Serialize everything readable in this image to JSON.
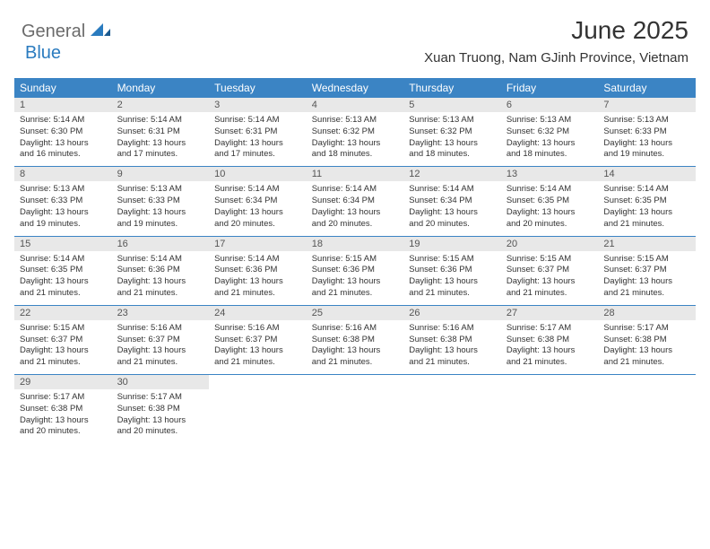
{
  "logo": {
    "text1": "General",
    "text2": "Blue"
  },
  "title": "June 2025",
  "location": "Xuan Truong, Nam GJinh Province, Vietnam",
  "dayNames": [
    "Sunday",
    "Monday",
    "Tuesday",
    "Wednesday",
    "Thursday",
    "Friday",
    "Saturday"
  ],
  "colors": {
    "headerBg": "#3b84c4",
    "headerText": "#ffffff",
    "daynumBg": "#e8e8e8",
    "weekBorder": "#3b84c4",
    "logoGray": "#6b6b6b",
    "logoBlue": "#2a7bbf"
  },
  "weeks": [
    [
      {
        "n": "1",
        "sunrise": "Sunrise: 5:14 AM",
        "sunset": "Sunset: 6:30 PM",
        "d1": "Daylight: 13 hours",
        "d2": "and 16 minutes."
      },
      {
        "n": "2",
        "sunrise": "Sunrise: 5:14 AM",
        "sunset": "Sunset: 6:31 PM",
        "d1": "Daylight: 13 hours",
        "d2": "and 17 minutes."
      },
      {
        "n": "3",
        "sunrise": "Sunrise: 5:14 AM",
        "sunset": "Sunset: 6:31 PM",
        "d1": "Daylight: 13 hours",
        "d2": "and 17 minutes."
      },
      {
        "n": "4",
        "sunrise": "Sunrise: 5:13 AM",
        "sunset": "Sunset: 6:32 PM",
        "d1": "Daylight: 13 hours",
        "d2": "and 18 minutes."
      },
      {
        "n": "5",
        "sunrise": "Sunrise: 5:13 AM",
        "sunset": "Sunset: 6:32 PM",
        "d1": "Daylight: 13 hours",
        "d2": "and 18 minutes."
      },
      {
        "n": "6",
        "sunrise": "Sunrise: 5:13 AM",
        "sunset": "Sunset: 6:32 PM",
        "d1": "Daylight: 13 hours",
        "d2": "and 18 minutes."
      },
      {
        "n": "7",
        "sunrise": "Sunrise: 5:13 AM",
        "sunset": "Sunset: 6:33 PM",
        "d1": "Daylight: 13 hours",
        "d2": "and 19 minutes."
      }
    ],
    [
      {
        "n": "8",
        "sunrise": "Sunrise: 5:13 AM",
        "sunset": "Sunset: 6:33 PM",
        "d1": "Daylight: 13 hours",
        "d2": "and 19 minutes."
      },
      {
        "n": "9",
        "sunrise": "Sunrise: 5:13 AM",
        "sunset": "Sunset: 6:33 PM",
        "d1": "Daylight: 13 hours",
        "d2": "and 19 minutes."
      },
      {
        "n": "10",
        "sunrise": "Sunrise: 5:14 AM",
        "sunset": "Sunset: 6:34 PM",
        "d1": "Daylight: 13 hours",
        "d2": "and 20 minutes."
      },
      {
        "n": "11",
        "sunrise": "Sunrise: 5:14 AM",
        "sunset": "Sunset: 6:34 PM",
        "d1": "Daylight: 13 hours",
        "d2": "and 20 minutes."
      },
      {
        "n": "12",
        "sunrise": "Sunrise: 5:14 AM",
        "sunset": "Sunset: 6:34 PM",
        "d1": "Daylight: 13 hours",
        "d2": "and 20 minutes."
      },
      {
        "n": "13",
        "sunrise": "Sunrise: 5:14 AM",
        "sunset": "Sunset: 6:35 PM",
        "d1": "Daylight: 13 hours",
        "d2": "and 20 minutes."
      },
      {
        "n": "14",
        "sunrise": "Sunrise: 5:14 AM",
        "sunset": "Sunset: 6:35 PM",
        "d1": "Daylight: 13 hours",
        "d2": "and 21 minutes."
      }
    ],
    [
      {
        "n": "15",
        "sunrise": "Sunrise: 5:14 AM",
        "sunset": "Sunset: 6:35 PM",
        "d1": "Daylight: 13 hours",
        "d2": "and 21 minutes."
      },
      {
        "n": "16",
        "sunrise": "Sunrise: 5:14 AM",
        "sunset": "Sunset: 6:36 PM",
        "d1": "Daylight: 13 hours",
        "d2": "and 21 minutes."
      },
      {
        "n": "17",
        "sunrise": "Sunrise: 5:14 AM",
        "sunset": "Sunset: 6:36 PM",
        "d1": "Daylight: 13 hours",
        "d2": "and 21 minutes."
      },
      {
        "n": "18",
        "sunrise": "Sunrise: 5:15 AM",
        "sunset": "Sunset: 6:36 PM",
        "d1": "Daylight: 13 hours",
        "d2": "and 21 minutes."
      },
      {
        "n": "19",
        "sunrise": "Sunrise: 5:15 AM",
        "sunset": "Sunset: 6:36 PM",
        "d1": "Daylight: 13 hours",
        "d2": "and 21 minutes."
      },
      {
        "n": "20",
        "sunrise": "Sunrise: 5:15 AM",
        "sunset": "Sunset: 6:37 PM",
        "d1": "Daylight: 13 hours",
        "d2": "and 21 minutes."
      },
      {
        "n": "21",
        "sunrise": "Sunrise: 5:15 AM",
        "sunset": "Sunset: 6:37 PM",
        "d1": "Daylight: 13 hours",
        "d2": "and 21 minutes."
      }
    ],
    [
      {
        "n": "22",
        "sunrise": "Sunrise: 5:15 AM",
        "sunset": "Sunset: 6:37 PM",
        "d1": "Daylight: 13 hours",
        "d2": "and 21 minutes."
      },
      {
        "n": "23",
        "sunrise": "Sunrise: 5:16 AM",
        "sunset": "Sunset: 6:37 PM",
        "d1": "Daylight: 13 hours",
        "d2": "and 21 minutes."
      },
      {
        "n": "24",
        "sunrise": "Sunrise: 5:16 AM",
        "sunset": "Sunset: 6:37 PM",
        "d1": "Daylight: 13 hours",
        "d2": "and 21 minutes."
      },
      {
        "n": "25",
        "sunrise": "Sunrise: 5:16 AM",
        "sunset": "Sunset: 6:38 PM",
        "d1": "Daylight: 13 hours",
        "d2": "and 21 minutes."
      },
      {
        "n": "26",
        "sunrise": "Sunrise: 5:16 AM",
        "sunset": "Sunset: 6:38 PM",
        "d1": "Daylight: 13 hours",
        "d2": "and 21 minutes."
      },
      {
        "n": "27",
        "sunrise": "Sunrise: 5:17 AM",
        "sunset": "Sunset: 6:38 PM",
        "d1": "Daylight: 13 hours",
        "d2": "and 21 minutes."
      },
      {
        "n": "28",
        "sunrise": "Sunrise: 5:17 AM",
        "sunset": "Sunset: 6:38 PM",
        "d1": "Daylight: 13 hours",
        "d2": "and 21 minutes."
      }
    ],
    [
      {
        "n": "29",
        "sunrise": "Sunrise: 5:17 AM",
        "sunset": "Sunset: 6:38 PM",
        "d1": "Daylight: 13 hours",
        "d2": "and 20 minutes."
      },
      {
        "n": "30",
        "sunrise": "Sunrise: 5:17 AM",
        "sunset": "Sunset: 6:38 PM",
        "d1": "Daylight: 13 hours",
        "d2": "and 20 minutes."
      },
      null,
      null,
      null,
      null,
      null
    ]
  ]
}
